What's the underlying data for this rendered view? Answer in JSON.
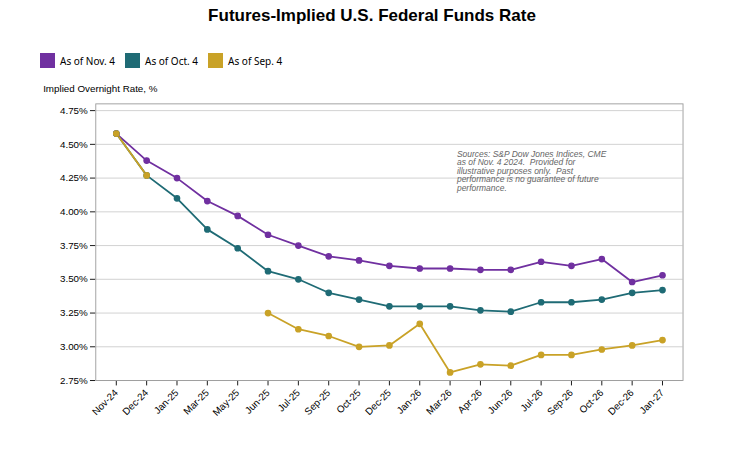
{
  "chart_data": {
    "type": "line",
    "title": "Futures-Implied U.S. Federal Funds Rate",
    "ylabel": "Implied Overnight Rate, %",
    "categories": [
      "Nov-24",
      "Dec-24",
      "Jan-25",
      "Mar-25",
      "May-25",
      "Jun-25",
      "Jul-25",
      "Sep-25",
      "Oct-25",
      "Dec-25",
      "Jan-26",
      "Mar-26",
      "Apr-26",
      "Jun-26",
      "Jul-26",
      "Sep-26",
      "Oct-26",
      "Dec-26",
      "Jan-27"
    ],
    "series": [
      {
        "name": "As of Nov. 4",
        "color": "#7030A0",
        "values": [
          4.58,
          4.38,
          4.25,
          4.08,
          3.97,
          3.83,
          3.75,
          3.67,
          3.64,
          3.6,
          3.58,
          3.58,
          3.57,
          3.57,
          3.63,
          3.6,
          3.65,
          3.48,
          3.53
        ]
      },
      {
        "name": "As of Oct. 4",
        "color": "#1F6B75",
        "values": [
          4.58,
          4.27,
          4.1,
          3.87,
          3.73,
          3.56,
          3.5,
          3.4,
          3.35,
          3.3,
          3.3,
          3.3,
          3.27,
          3.26,
          3.33,
          3.33,
          3.35,
          3.4,
          3.42
        ]
      },
      {
        "name": "As of Sep. 4",
        "color": "#C9A227",
        "values": [
          4.58,
          4.27,
          null,
          null,
          null,
          3.25,
          3.13,
          3.08,
          3.0,
          3.01,
          3.17,
          2.81,
          2.87,
          2.86,
          2.94,
          2.94,
          2.98,
          3.01,
          3.05
        ]
      }
    ],
    "ylim": [
      2.75,
      4.8
    ],
    "yticks": [
      {
        "value": 2.75,
        "label": "2.75%"
      },
      {
        "value": 3.0,
        "label": "3.00%"
      },
      {
        "value": 3.25,
        "label": "3.25%"
      },
      {
        "value": 3.5,
        "label": "3.50%"
      },
      {
        "value": 3.75,
        "label": "3.75%"
      },
      {
        "value": 4.0,
        "label": "4.00%"
      },
      {
        "value": 4.25,
        "label": "4.25%"
      },
      {
        "value": 4.5,
        "label": "4.50%"
      },
      {
        "value": 4.75,
        "label": "4.75%"
      }
    ],
    "grid": true,
    "legend": "top",
    "marker": "circle",
    "annotation": "Sources: S&P Dow Jones Indices, CME\nas of Nov. 4 2024.  Provided for\nillustrative purposes only.  Past\nperformance is no guarantee of future\nperformance."
  }
}
